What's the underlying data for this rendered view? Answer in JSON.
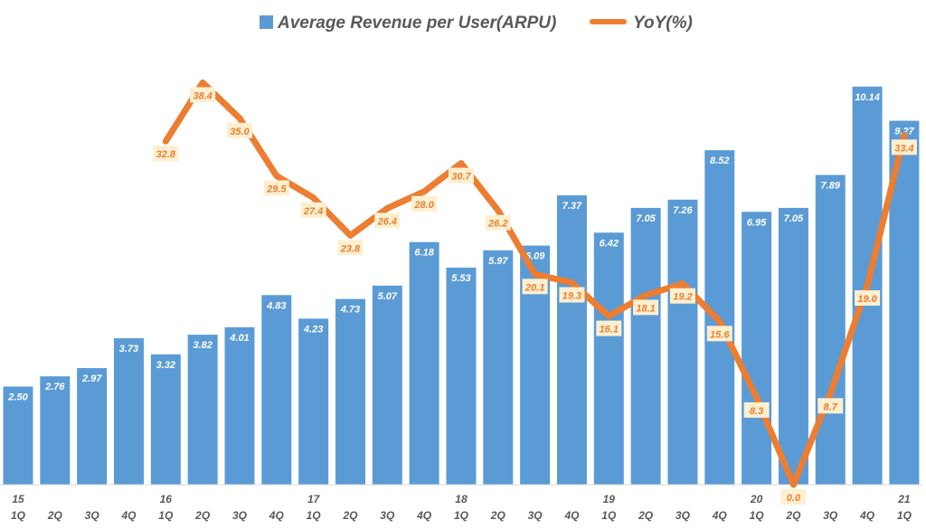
{
  "chart_data": {
    "type": "bar+line",
    "title": "",
    "legend_position": "top",
    "grid": false,
    "categories": [
      {
        "year": "15",
        "quarter": "1Q"
      },
      {
        "year": "",
        "quarter": "2Q"
      },
      {
        "year": "",
        "quarter": "3Q"
      },
      {
        "year": "",
        "quarter": "4Q"
      },
      {
        "year": "16",
        "quarter": "1Q"
      },
      {
        "year": "",
        "quarter": "2Q"
      },
      {
        "year": "",
        "quarter": "3Q"
      },
      {
        "year": "",
        "quarter": "4Q"
      },
      {
        "year": "17",
        "quarter": "1Q"
      },
      {
        "year": "",
        "quarter": "2Q"
      },
      {
        "year": "",
        "quarter": "3Q"
      },
      {
        "year": "",
        "quarter": "4Q"
      },
      {
        "year": "18",
        "quarter": "1Q"
      },
      {
        "year": "",
        "quarter": "2Q"
      },
      {
        "year": "",
        "quarter": "3Q"
      },
      {
        "year": "",
        "quarter": "4Q"
      },
      {
        "year": "19",
        "quarter": "1Q"
      },
      {
        "year": "",
        "quarter": "2Q"
      },
      {
        "year": "",
        "quarter": "3Q"
      },
      {
        "year": "",
        "quarter": "4Q"
      },
      {
        "year": "20",
        "quarter": "1Q"
      },
      {
        "year": "",
        "quarter": "2Q"
      },
      {
        "year": "",
        "quarter": "3Q"
      },
      {
        "year": "",
        "quarter": "4Q"
      },
      {
        "year": "21",
        "quarter": "1Q"
      }
    ],
    "series": [
      {
        "name": "Average Revenue per User(ARPU)",
        "type": "bar",
        "color": "#5b9bd5",
        "axis": "primary",
        "ylim": [
          0,
          12
        ],
        "values": [
          2.5,
          2.76,
          2.97,
          3.73,
          3.32,
          3.82,
          4.01,
          4.83,
          4.23,
          4.73,
          5.07,
          6.18,
          5.53,
          5.97,
          6.09,
          7.37,
          6.42,
          7.05,
          7.26,
          8.52,
          6.95,
          7.05,
          7.89,
          10.14,
          9.27
        ],
        "labels": [
          "2.50",
          "2.76",
          "2.97",
          "3.73",
          "3.32",
          "3.82",
          "4.01",
          "4.83",
          "4.23",
          "4.73",
          "5.07",
          "6.18",
          "5.53",
          "5.97",
          "6.09",
          "7.37",
          "6.42",
          "7.05",
          "7.26",
          "8.52",
          "6.95",
          "7.05",
          "7.89",
          "10.14",
          "9.27"
        ]
      },
      {
        "name": "YoY(%)",
        "type": "line",
        "color": "#ed7d31",
        "label_bg": "#fdf0d0",
        "axis": "secondary",
        "ylim": [
          0,
          45
        ],
        "values": [
          null,
          null,
          null,
          null,
          32.8,
          38.4,
          35.0,
          29.5,
          27.4,
          23.8,
          26.4,
          28.0,
          30.7,
          26.2,
          20.1,
          19.3,
          16.1,
          18.1,
          19.2,
          15.6,
          8.3,
          0.0,
          8.7,
          19.0,
          33.4
        ],
        "labels": [
          null,
          null,
          null,
          null,
          "32.8",
          "38.4",
          "35.0",
          "29.5",
          "27.4",
          "23.8",
          "26.4",
          "28.0",
          "30.7",
          "26.2",
          "20.1",
          "19.3",
          "16.1",
          "18.1",
          "19.2",
          "15.6",
          "8.3",
          "0.0",
          "8.7",
          "19.0",
          "33.4"
        ]
      }
    ]
  }
}
